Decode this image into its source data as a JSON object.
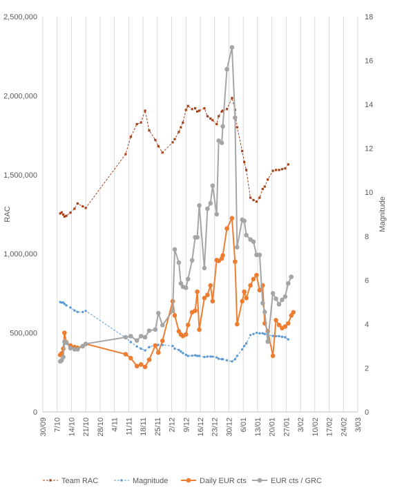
{
  "chart_data": {
    "type": "line",
    "title": "",
    "x_ticks": [
      "30/09",
      "7/10",
      "14/10",
      "21/10",
      "28/10",
      "4/11",
      "11/11",
      "18/11",
      "25/11",
      "2/12",
      "9/12",
      "16/12",
      "23/12",
      "30/12",
      "6/01",
      "13/01",
      "20/01",
      "27/01",
      "3/02",
      "10/02",
      "17/02",
      "24/02",
      "3/03"
    ],
    "x_range": [
      0,
      154
    ],
    "y_left": {
      "label": "RAC",
      "ticks": [
        "0",
        "500,000",
        "1,000,000",
        "1,500,000",
        "2,000,000",
        "2,500,000"
      ],
      "range": [
        0,
        2500000
      ]
    },
    "y_right": {
      "label": "Magnitude",
      "ticks": [
        "0",
        "2",
        "4",
        "6",
        "8",
        "10",
        "12",
        "14",
        "16",
        "18"
      ],
      "range": [
        0,
        18
      ]
    },
    "grid": "vertical",
    "legend": "bottom",
    "series": [
      {
        "name": "Team RAC",
        "axis": "left",
        "color": "#A5421A",
        "dash": "3,2",
        "marker": "square",
        "points": [
          [
            8.5,
            1255000
          ],
          [
            9.2,
            1262000
          ],
          [
            10,
            1248000
          ],
          [
            10.6,
            1235000
          ],
          [
            11.5,
            1240000
          ],
          [
            13.5,
            1260000
          ],
          [
            15.5,
            1285000
          ],
          [
            17,
            1318000
          ],
          [
            19.5,
            1300000
          ],
          [
            21,
            1290000
          ],
          [
            40.5,
            1630000
          ],
          [
            43,
            1740000
          ],
          [
            46,
            1820000
          ],
          [
            48,
            1830000
          ],
          [
            50,
            1905000
          ],
          [
            52,
            1780000
          ],
          [
            55,
            1720000
          ],
          [
            56.5,
            1680000
          ],
          [
            58.5,
            1640000
          ],
          [
            63.5,
            1705000
          ],
          [
            64.5,
            1725000
          ],
          [
            66.5,
            1770000
          ],
          [
            67.5,
            1800000
          ],
          [
            68.5,
            1830000
          ],
          [
            70,
            1910000
          ],
          [
            71,
            1935000
          ],
          [
            73,
            1915000
          ],
          [
            74.5,
            1920000
          ],
          [
            75.5,
            1900000
          ],
          [
            76.5,
            1905000
          ],
          [
            79,
            1920000
          ],
          [
            80.5,
            1870000
          ],
          [
            82,
            1855000
          ],
          [
            83,
            1845000
          ],
          [
            85,
            1820000
          ],
          [
            86,
            1870000
          ],
          [
            87.5,
            1900000
          ],
          [
            88,
            1905000
          ],
          [
            90,
            1915000
          ],
          [
            92.5,
            1985000
          ],
          [
            94,
            1910000
          ],
          [
            95,
            1800000
          ],
          [
            97.5,
            1650000
          ],
          [
            98.5,
            1580000
          ],
          [
            99.5,
            1530000
          ],
          [
            101.5,
            1355000
          ],
          [
            103,
            1340000
          ],
          [
            104.5,
            1330000
          ],
          [
            106,
            1355000
          ],
          [
            107.5,
            1410000
          ],
          [
            108.5,
            1425000
          ],
          [
            110,
            1470000
          ],
          [
            112.5,
            1525000
          ],
          [
            114,
            1530000
          ],
          [
            115.5,
            1530000
          ],
          [
            117,
            1535000
          ],
          [
            118.5,
            1540000
          ],
          [
            120,
            1565000
          ]
        ]
      },
      {
        "name": "Magnitude",
        "axis": "right",
        "color": "#5B9BD5",
        "dash": "3,2",
        "marker": "circle",
        "points": [
          [
            8.5,
            5.0
          ],
          [
            9.2,
            4.98
          ],
          [
            10,
            4.98
          ],
          [
            10.6,
            4.92
          ],
          [
            11.5,
            4.85
          ],
          [
            13.5,
            4.75
          ],
          [
            15.5,
            4.62
          ],
          [
            17,
            4.55
          ],
          [
            19.5,
            4.55
          ],
          [
            21,
            4.6
          ],
          [
            40.5,
            3.38
          ],
          [
            43,
            3.18
          ],
          [
            46,
            2.98
          ],
          [
            48,
            2.88
          ],
          [
            50,
            2.8
          ],
          [
            52,
            2.95
          ],
          [
            55,
            3.05
          ],
          [
            56.5,
            3.05
          ],
          [
            58.5,
            3.05
          ],
          [
            63.5,
            3.0
          ],
          [
            64.5,
            2.88
          ],
          [
            66.5,
            2.82
          ],
          [
            67.5,
            2.75
          ],
          [
            68.5,
            2.68
          ],
          [
            70,
            2.6
          ],
          [
            71,
            2.55
          ],
          [
            73,
            2.56
          ],
          [
            74.5,
            2.58
          ],
          [
            75.5,
            2.55
          ],
          [
            76.5,
            2.55
          ],
          [
            79,
            2.5
          ],
          [
            80.5,
            2.52
          ],
          [
            82,
            2.52
          ],
          [
            83,
            2.52
          ],
          [
            85,
            2.48
          ],
          [
            86,
            2.42
          ],
          [
            87.5,
            2.4
          ],
          [
            88,
            2.4
          ],
          [
            90,
            2.35
          ],
          [
            92.5,
            2.3
          ],
          [
            94,
            2.4
          ],
          [
            95,
            2.55
          ],
          [
            97.5,
            2.85
          ],
          [
            98.5,
            3.0
          ],
          [
            99.5,
            3.12
          ],
          [
            101.5,
            3.5
          ],
          [
            103,
            3.55
          ],
          [
            104.5,
            3.6
          ],
          [
            106,
            3.58
          ],
          [
            107.5,
            3.58
          ],
          [
            108.5,
            3.55
          ],
          [
            110,
            3.5
          ],
          [
            112.5,
            3.46
          ],
          [
            114,
            3.45
          ],
          [
            115.5,
            3.45
          ],
          [
            117,
            3.42
          ],
          [
            118.5,
            3.4
          ],
          [
            120,
            3.3
          ]
        ]
      },
      {
        "name": "Daily EUR cts",
        "axis": "left",
        "color": "#ED7D31",
        "dash": "",
        "marker": "big-circle",
        "points": [
          [
            8.5,
            360000
          ],
          [
            9.2,
            370000
          ],
          [
            10,
            400000
          ],
          [
            10.6,
            500000
          ],
          [
            11.5,
            440000
          ],
          [
            13.5,
            420000
          ],
          [
            15.5,
            410000
          ],
          [
            17,
            405000
          ],
          [
            19.5,
            415000
          ],
          [
            21,
            430000
          ],
          [
            40.5,
            365000
          ],
          [
            43,
            340000
          ],
          [
            46,
            290000
          ],
          [
            48,
            300000
          ],
          [
            50,
            285000
          ],
          [
            52,
            330000
          ],
          [
            55,
            420000
          ],
          [
            56.5,
            375000
          ],
          [
            58.5,
            450000
          ],
          [
            63.5,
            700000
          ],
          [
            64.5,
            610000
          ],
          [
            66.5,
            510000
          ],
          [
            67.5,
            490000
          ],
          [
            68.5,
            480000
          ],
          [
            70,
            490000
          ],
          [
            71,
            550000
          ],
          [
            73,
            630000
          ],
          [
            74.5,
            640000
          ],
          [
            75.5,
            760000
          ],
          [
            76.5,
            520000
          ],
          [
            79,
            720000
          ],
          [
            80.5,
            740000
          ],
          [
            82,
            800000
          ],
          [
            83,
            700000
          ],
          [
            85,
            960000
          ],
          [
            86,
            955000
          ],
          [
            87.5,
            970000
          ],
          [
            88,
            990000
          ],
          [
            90,
            1160000
          ],
          [
            92.5,
            1225000
          ],
          [
            94,
            950000
          ],
          [
            95,
            555000
          ],
          [
            97.5,
            700000
          ],
          [
            98.5,
            760000
          ],
          [
            99.5,
            720000
          ],
          [
            101.5,
            800000
          ],
          [
            103,
            840000
          ],
          [
            104.5,
            865000
          ],
          [
            106,
            770000
          ],
          [
            107.5,
            800000
          ],
          [
            108.5,
            560000
          ],
          [
            110,
            510000
          ],
          [
            112.5,
            355000
          ],
          [
            114,
            580000
          ],
          [
            115.5,
            550000
          ],
          [
            117,
            530000
          ],
          [
            118.5,
            540000
          ],
          [
            120,
            560000
          ],
          [
            121.5,
            610000
          ],
          [
            122.5,
            630000
          ]
        ]
      },
      {
        "name": "EUR cts / GRC",
        "axis": "right",
        "color": "#A5A5A5",
        "dash": "",
        "marker": "big-circle",
        "points": [
          [
            8.5,
            2.3
          ],
          [
            9.2,
            2.35
          ],
          [
            10,
            2.5
          ],
          [
            10.6,
            3.2
          ],
          [
            11.5,
            3.15
          ],
          [
            13.5,
            2.9
          ],
          [
            15.5,
            2.85
          ],
          [
            17,
            2.85
          ],
          [
            19.5,
            3.0
          ],
          [
            21,
            3.1
          ],
          [
            40.5,
            3.4
          ],
          [
            43,
            3.45
          ],
          [
            46,
            3.25
          ],
          [
            48,
            3.45
          ],
          [
            50,
            3.4
          ],
          [
            52,
            3.7
          ],
          [
            55,
            3.75
          ],
          [
            56.5,
            4.5
          ],
          [
            58.5,
            3.95
          ],
          [
            63.5,
            4.6
          ],
          [
            64.5,
            7.4
          ],
          [
            66.5,
            6.8
          ],
          [
            67.5,
            5.85
          ],
          [
            68.5,
            5.7
          ],
          [
            70,
            5.65
          ],
          [
            71,
            6.05
          ],
          [
            73,
            6.9
          ],
          [
            74.5,
            7.95
          ],
          [
            75.5,
            7.95
          ],
          [
            76.5,
            9.4
          ],
          [
            79,
            6.55
          ],
          [
            80.5,
            9.25
          ],
          [
            82,
            9.5
          ],
          [
            83,
            10.3
          ],
          [
            85,
            9.0
          ],
          [
            86,
            12.35
          ],
          [
            87.5,
            12.25
          ],
          [
            88,
            13.0
          ],
          [
            90,
            15.6
          ],
          [
            92.5,
            16.6
          ],
          [
            94,
            13.4
          ],
          [
            95,
            7.5
          ],
          [
            97.5,
            8.75
          ],
          [
            98.5,
            8.7
          ],
          [
            99.5,
            8.05
          ],
          [
            101.5,
            7.85
          ],
          [
            103,
            7.75
          ],
          [
            104.5,
            7.15
          ],
          [
            106,
            7.15
          ],
          [
            107.5,
            4.95
          ],
          [
            108.5,
            4.55
          ],
          [
            110,
            3.2
          ],
          [
            112.5,
            5.4
          ],
          [
            114,
            5.15
          ],
          [
            115.5,
            4.9
          ],
          [
            117,
            5.1
          ],
          [
            118.5,
            5.25
          ],
          [
            120,
            5.85
          ],
          [
            121.5,
            6.15
          ]
        ]
      }
    ]
  }
}
